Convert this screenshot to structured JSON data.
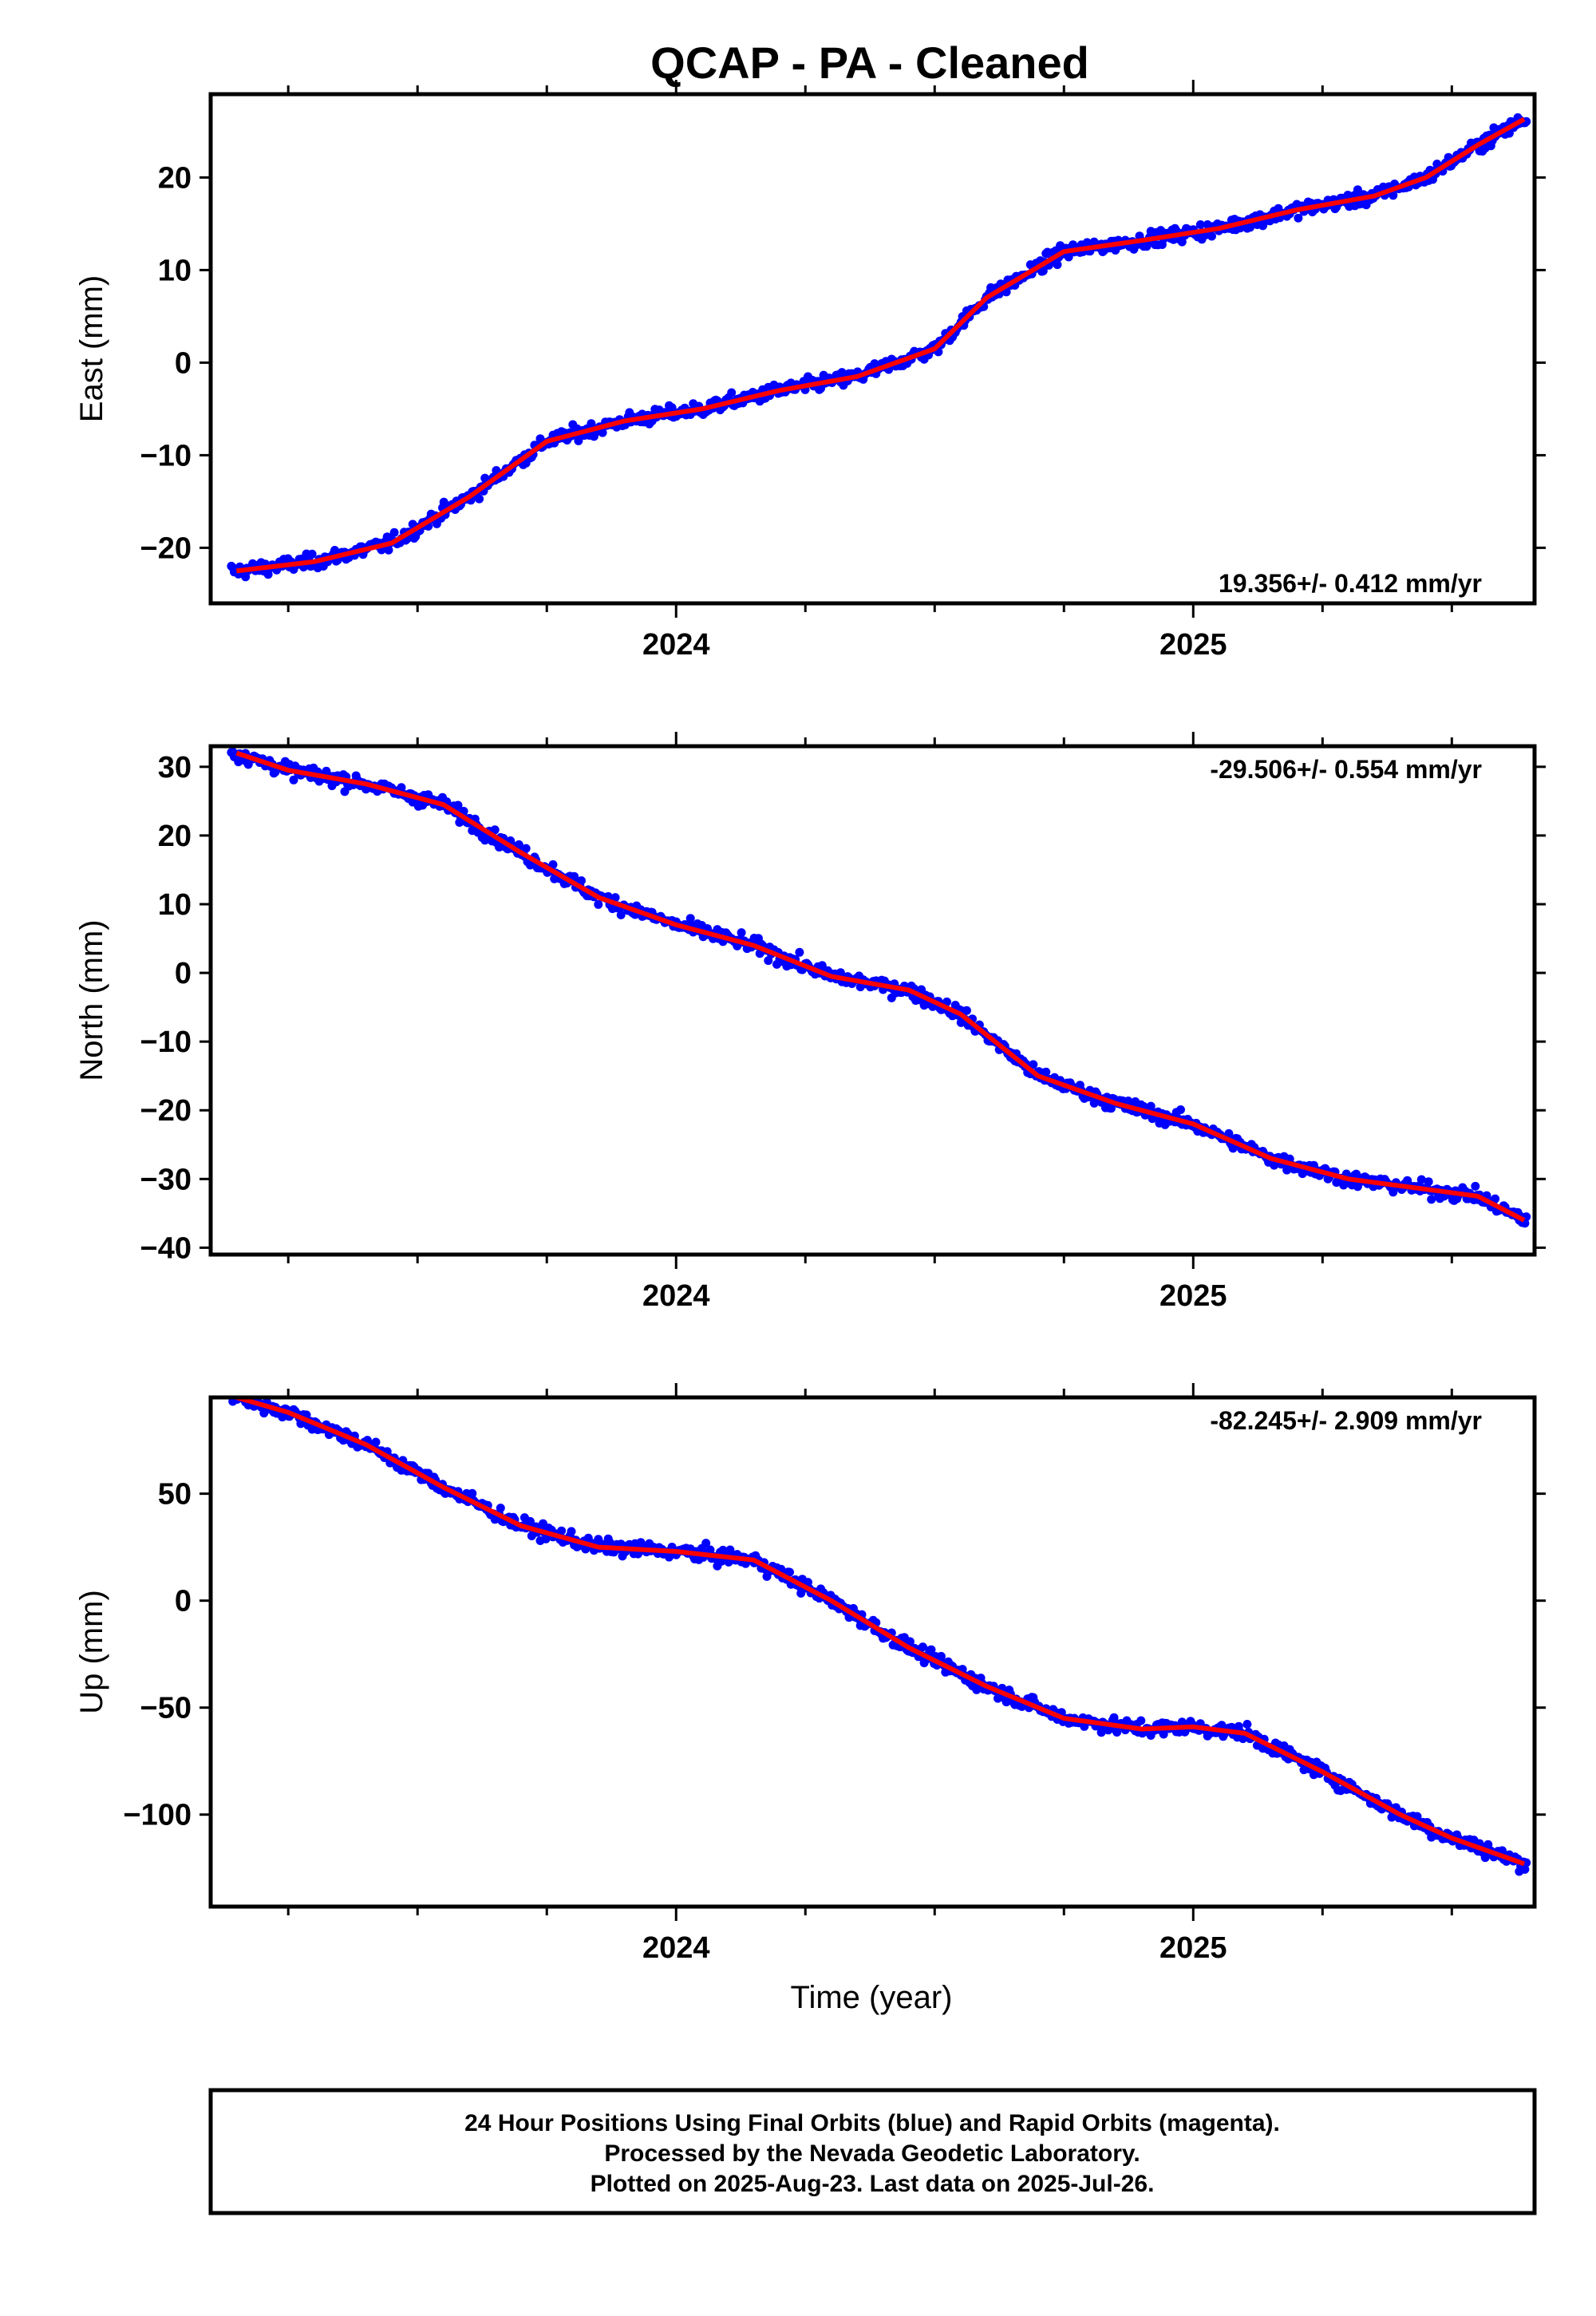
{
  "title": "QCAP  - PA - Cleaned",
  "xlabel": "Time (year)",
  "footer": {
    "line1": "24 Hour Positions Using Final Orbits (blue) and Rapid Orbits (magenta).",
    "line2": "Processed by the Nevada Geodetic Laboratory.",
    "line3": "Plotted on 2025-Aug-23. Last data on 2025-Jul-26."
  },
  "colors": {
    "points": "#0000ff",
    "fit": "#ff0000",
    "axes": "#000000"
  },
  "chart_data": [
    {
      "type": "scatter",
      "ylabel": "East (mm)",
      "rate_label": "19.356+/- 0.412 mm/yr",
      "rate_position": "bottom-right",
      "xlim": [
        2023.1,
        2025.66
      ],
      "ylim": [
        -26,
        29
      ],
      "x_ticks": [
        "2024",
        "2025"
      ],
      "y_ticks": [
        -20,
        -10,
        0,
        10,
        20
      ],
      "trend": [
        [
          2023.15,
          -22.5
        ],
        [
          2023.3,
          -21.5
        ],
        [
          2023.45,
          -19.5
        ],
        [
          2023.6,
          -14.5
        ],
        [
          2023.75,
          -8.5
        ],
        [
          2023.9,
          -6.3
        ],
        [
          2024.05,
          -5.0
        ],
        [
          2024.2,
          -3.0
        ],
        [
          2024.35,
          -1.5
        ],
        [
          2024.5,
          1.5
        ],
        [
          2024.6,
          7.0
        ],
        [
          2024.75,
          12.0
        ],
        [
          2024.9,
          13.2
        ],
        [
          2025.05,
          14.5
        ],
        [
          2025.2,
          16.5
        ],
        [
          2025.35,
          18.0
        ],
        [
          2025.45,
          20.0
        ],
        [
          2025.55,
          23.5
        ],
        [
          2025.64,
          26.3
        ]
      ]
    },
    {
      "type": "scatter",
      "ylabel": "North (mm)",
      "rate_label": "-29.506+/- 0.554 mm/yr",
      "rate_position": "top-right",
      "xlim": [
        2023.1,
        2025.66
      ],
      "ylim": [
        -41,
        33
      ],
      "x_ticks": [
        "2024",
        "2025"
      ],
      "y_ticks": [
        -40,
        -30,
        -20,
        -10,
        0,
        10,
        20,
        30
      ],
      "trend": [
        [
          2023.15,
          32.0
        ],
        [
          2023.25,
          29.5
        ],
        [
          2023.4,
          27.5
        ],
        [
          2023.55,
          24.5
        ],
        [
          2023.7,
          17.5
        ],
        [
          2023.85,
          11.0
        ],
        [
          2024.0,
          7.0
        ],
        [
          2024.15,
          4.0
        ],
        [
          2024.3,
          -0.5
        ],
        [
          2024.45,
          -2.5
        ],
        [
          2024.55,
          -6.0
        ],
        [
          2024.7,
          -15.0
        ],
        [
          2024.85,
          -19.0
        ],
        [
          2025.0,
          -22.0
        ],
        [
          2025.15,
          -27.0
        ],
        [
          2025.3,
          -30.0
        ],
        [
          2025.45,
          -31.5
        ],
        [
          2025.55,
          -32.5
        ],
        [
          2025.64,
          -36.0
        ]
      ]
    },
    {
      "type": "scatter",
      "ylabel": "Up (mm)",
      "rate_label": "-82.245+/- 2.909 mm/yr",
      "rate_position": "top-right",
      "xlim": [
        2023.1,
        2025.66
      ],
      "ylim": [
        -143,
        95
      ],
      "x_ticks": [
        "2024",
        "2025"
      ],
      "y_ticks": [
        -100,
        -50,
        0,
        50
      ],
      "trend": [
        [
          2023.15,
          95
        ],
        [
          2023.25,
          88
        ],
        [
          2023.4,
          73
        ],
        [
          2023.55,
          53
        ],
        [
          2023.7,
          35
        ],
        [
          2023.85,
          25
        ],
        [
          2024.0,
          23
        ],
        [
          2024.15,
          19
        ],
        [
          2024.3,
          0
        ],
        [
          2024.45,
          -22
        ],
        [
          2024.6,
          -40
        ],
        [
          2024.75,
          -55
        ],
        [
          2024.9,
          -60
        ],
        [
          2025.0,
          -59
        ],
        [
          2025.1,
          -62
        ],
        [
          2025.25,
          -80
        ],
        [
          2025.4,
          -100
        ],
        [
          2025.5,
          -111
        ],
        [
          2025.64,
          -123
        ]
      ]
    }
  ]
}
